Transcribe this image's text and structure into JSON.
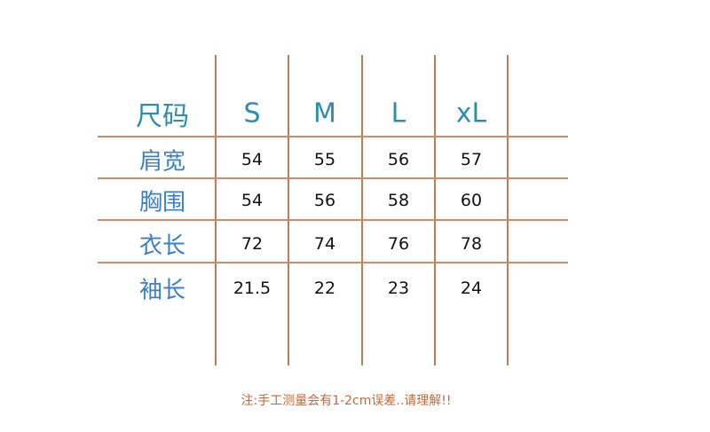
{
  "table": {
    "header_label": "尺码",
    "sizes": [
      "S",
      "M",
      "L",
      "xL"
    ],
    "rows": [
      {
        "label": "肩宽",
        "values": [
          "54",
          "55",
          "56",
          "57"
        ]
      },
      {
        "label": "胸围",
        "values": [
          "54",
          "56",
          "58",
          "60"
        ]
      },
      {
        "label": "衣长",
        "values": [
          "72",
          "74",
          "76",
          "78"
        ]
      },
      {
        "label": "袖长",
        "values": [
          "21.5",
          "22",
          "23",
          "24"
        ]
      }
    ]
  },
  "note": "注:手工测量会有1-2cm误差..请理解!!",
  "colors": {
    "header": "#2a8fae",
    "row_label": "#3b7fc4",
    "grid": "#c47a55",
    "note": "#c4683a"
  }
}
